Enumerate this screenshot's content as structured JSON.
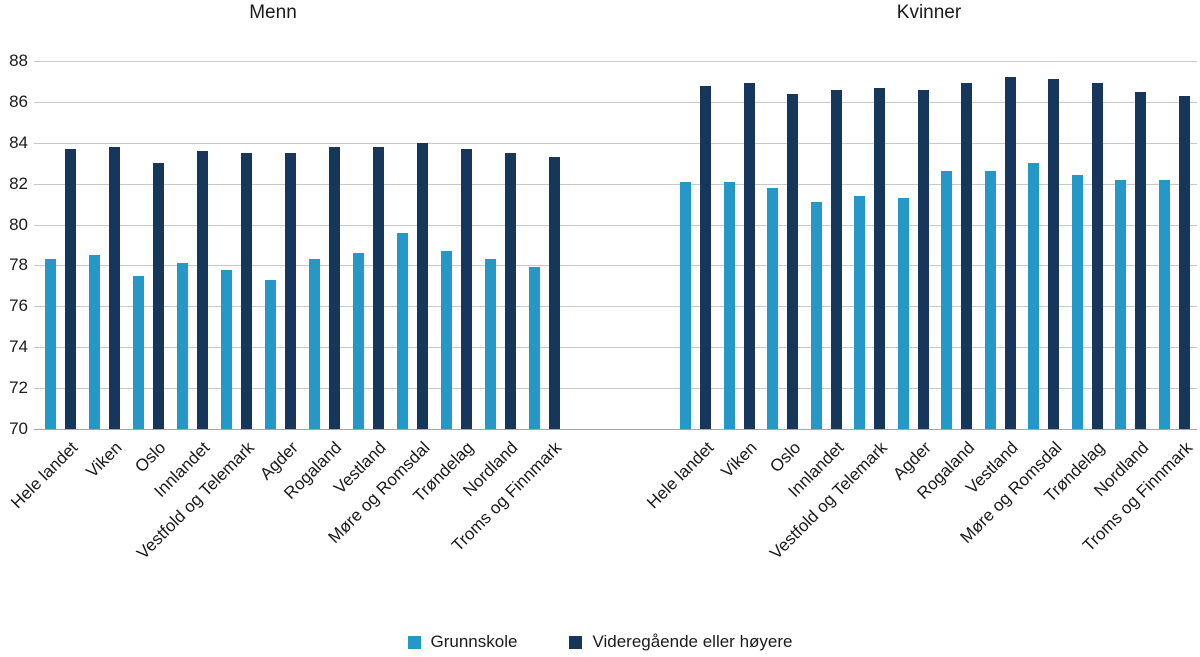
{
  "chart_data": {
    "type": "bar",
    "ylim": [
      70,
      88
    ],
    "y_ticks": [
      70,
      72,
      74,
      76,
      78,
      80,
      82,
      84,
      86,
      88
    ],
    "grid": "on",
    "legend_position": "bottom-center",
    "categories": [
      "Hele landet",
      "Viken",
      "Oslo",
      "Innlandet",
      "Vestfold og Telemark",
      "Agder",
      "Rogaland",
      "Vestland",
      "Møre og Romsdal",
      "Trøndelag",
      "Nordland",
      "Troms og Finnmark"
    ],
    "panels": [
      {
        "title": "Menn",
        "series": [
          {
            "name": "Grunnskole",
            "values": [
              78.3,
              78.5,
              77.5,
              78.1,
              77.8,
              77.3,
              78.3,
              78.6,
              79.6,
              78.7,
              78.3,
              77.9
            ]
          },
          {
            "name": "Videregående eller høyere",
            "values": [
              83.7,
              83.8,
              83.0,
              83.6,
              83.5,
              83.5,
              83.8,
              83.8,
              84.0,
              83.7,
              83.5,
              83.3
            ]
          }
        ]
      },
      {
        "title": "Kvinner",
        "series": [
          {
            "name": "Grunnskole",
            "values": [
              82.1,
              82.1,
              81.8,
              81.1,
              81.4,
              81.3,
              82.6,
              82.6,
              83.0,
              82.4,
              82.2,
              82.2
            ]
          },
          {
            "name": "Videregående eller høyere",
            "values": [
              86.8,
              86.9,
              86.4,
              86.6,
              86.7,
              86.6,
              86.9,
              87.2,
              87.1,
              86.9,
              86.5,
              86.3
            ]
          }
        ]
      }
    ],
    "colors": {
      "series1": "#2598c8",
      "series2": "#16365c",
      "grid": "#c9c9c9",
      "baseline": "#a6a6a6",
      "text": "#1a1a1a"
    }
  },
  "legend": {
    "items": [
      {
        "label": "Grunnskole"
      },
      {
        "label": "Videregående eller høyere"
      }
    ]
  }
}
